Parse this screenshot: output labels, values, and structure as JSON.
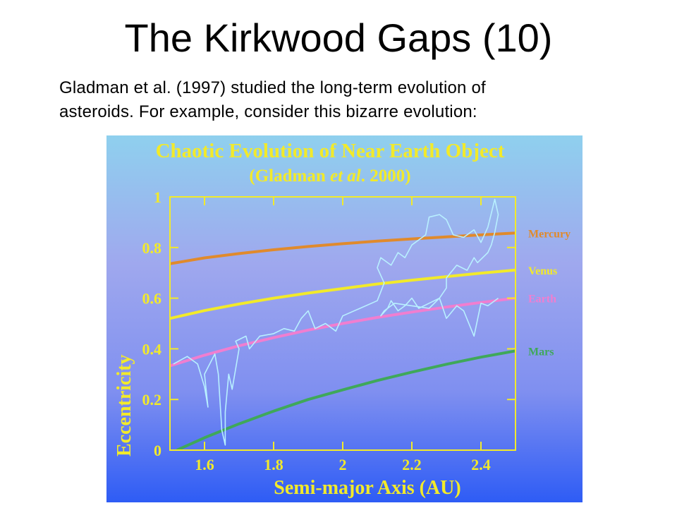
{
  "slide": {
    "title": "The Kirkwood Gaps (10)",
    "body_line1": "Gladman et al. (1997) studied the long-term evolution of",
    "body_line2": "asteroids.  For example, consider this bizarre evolution:"
  },
  "chart_data": {
    "type": "line",
    "title": "Chaotic Evolution of Near Earth Object",
    "subtitle_prefix": "(Gladman ",
    "subtitle_italic": "et al",
    "subtitle_suffix": ". 2000)",
    "xlabel": "Semi-major Axis (AU)",
    "ylabel": "Eccentricity",
    "xlim": [
      1.5,
      2.5
    ],
    "ylim": [
      0,
      1
    ],
    "xticks": [
      1.6,
      1.8,
      2,
      2.2,
      2.4
    ],
    "xtick_labels": [
      "1.6",
      "1.8",
      "2",
      "2.2",
      "2.4"
    ],
    "yticks": [
      0,
      0.2,
      0.4,
      0.6,
      0.8,
      1
    ],
    "ytick_labels": [
      "0",
      "0.2",
      "0.4",
      "0.6",
      "0.8",
      "1"
    ],
    "grid": false,
    "background_gradient": [
      "#8fd0ee",
      "#9fa8ee",
      "#7f8ff0",
      "#2e5cf5"
    ],
    "series": [
      {
        "name": "Mercury",
        "color": "#e08a2c",
        "x": [
          1.5,
          1.6,
          1.7,
          1.8,
          1.9,
          2.0,
          2.1,
          2.2,
          2.3,
          2.4,
          2.5
        ],
        "y": [
          0.736,
          0.759,
          0.776,
          0.791,
          0.804,
          0.815,
          0.825,
          0.834,
          0.842,
          0.85,
          0.857
        ]
      },
      {
        "name": "Venus",
        "color": "#f2ea2a",
        "x": [
          1.5,
          1.6,
          1.7,
          1.8,
          1.9,
          2.0,
          2.1,
          2.2,
          2.3,
          2.4,
          2.5
        ],
        "y": [
          0.52,
          0.551,
          0.577,
          0.6,
          0.62,
          0.638,
          0.656,
          0.671,
          0.685,
          0.699,
          0.711
        ]
      },
      {
        "name": "Earth",
        "color": "#f07ed0",
        "x": [
          1.5,
          1.6,
          1.7,
          1.8,
          1.9,
          2.0,
          2.1,
          2.2,
          2.3,
          2.4,
          2.5
        ],
        "y": [
          0.333,
          0.375,
          0.412,
          0.444,
          0.474,
          0.5,
          0.524,
          0.545,
          0.565,
          0.583,
          0.6
        ]
      },
      {
        "name": "Mars",
        "color": "#3fa85a",
        "x": [
          1.52,
          1.6,
          1.7,
          1.8,
          1.9,
          2.0,
          2.1,
          2.2,
          2.3,
          2.4,
          2.5
        ],
        "y": [
          0.0,
          0.049,
          0.104,
          0.154,
          0.2,
          0.238,
          0.275,
          0.308,
          0.339,
          0.367,
          0.392
        ]
      }
    ],
    "trajectory": {
      "color": "#b8f0ff",
      "x": [
        1.51,
        1.55,
        1.58,
        1.6,
        1.61,
        1.6,
        1.63,
        1.64,
        1.65,
        1.66,
        1.66,
        1.67,
        1.68,
        1.7,
        1.69,
        1.72,
        1.73,
        1.76,
        1.8,
        1.83,
        1.86,
        1.88,
        1.9,
        1.92,
        1.95,
        1.98,
        2.0,
        2.05,
        2.1,
        2.12,
        2.1,
        2.11,
        2.14,
        2.16,
        2.18,
        2.2,
        2.24,
        2.25,
        2.28,
        2.3,
        2.32,
        2.35,
        2.38,
        2.4,
        2.42,
        2.44,
        2.45,
        2.44,
        2.43,
        2.42,
        2.39,
        2.38,
        2.36,
        2.33,
        2.3,
        2.3,
        2.28,
        2.25,
        2.22,
        2.2,
        2.18,
        2.16,
        2.14,
        2.13,
        2.11,
        2.12,
        2.15,
        2.2,
        2.25,
        2.28,
        2.3,
        2.33,
        2.35,
        2.38,
        2.4,
        2.42,
        2.45
      ],
      "y": [
        0.34,
        0.37,
        0.34,
        0.25,
        0.17,
        0.3,
        0.38,
        0.3,
        0.08,
        0.02,
        0.15,
        0.3,
        0.24,
        0.4,
        0.43,
        0.45,
        0.4,
        0.45,
        0.46,
        0.48,
        0.47,
        0.52,
        0.55,
        0.48,
        0.5,
        0.47,
        0.53,
        0.56,
        0.59,
        0.66,
        0.72,
        0.76,
        0.73,
        0.78,
        0.76,
        0.81,
        0.85,
        0.92,
        0.93,
        0.91,
        0.85,
        0.84,
        0.87,
        0.82,
        0.88,
        0.99,
        0.93,
        0.86,
        0.81,
        0.78,
        0.74,
        0.76,
        0.71,
        0.73,
        0.68,
        0.64,
        0.6,
        0.58,
        0.56,
        0.6,
        0.57,
        0.55,
        0.59,
        0.56,
        0.53,
        0.55,
        0.58,
        0.57,
        0.56,
        0.6,
        0.52,
        0.57,
        0.55,
        0.45,
        0.58,
        0.57,
        0.6
      ]
    }
  }
}
